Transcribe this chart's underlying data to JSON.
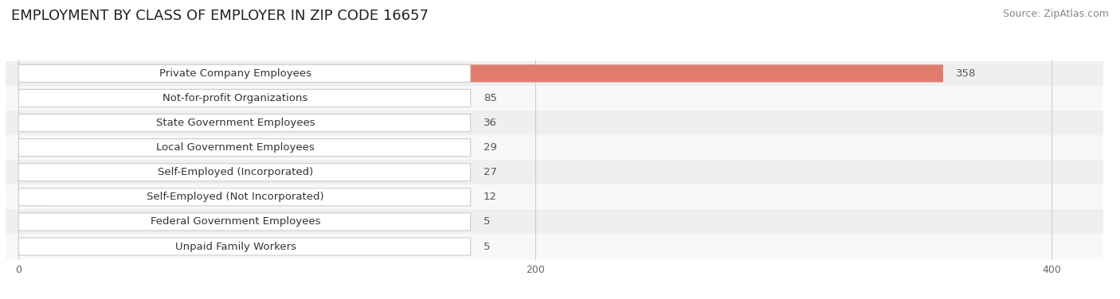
{
  "title": "EMPLOYMENT BY CLASS OF EMPLOYER IN ZIP CODE 16657",
  "source": "Source: ZipAtlas.com",
  "categories": [
    "Private Company Employees",
    "Not-for-profit Organizations",
    "State Government Employees",
    "Local Government Employees",
    "Self-Employed (Incorporated)",
    "Self-Employed (Not Incorporated)",
    "Federal Government Employees",
    "Unpaid Family Workers"
  ],
  "values": [
    358,
    85,
    36,
    29,
    27,
    12,
    5,
    5
  ],
  "bar_colors": [
    "#e07b6e",
    "#a8bcd8",
    "#c4a8d4",
    "#6dbfb8",
    "#b8b0dc",
    "#f0a0b0",
    "#f5c896",
    "#f0a8a8"
  ],
  "row_bg_colors": [
    "#efefef",
    "#f8f8f8"
  ],
  "xlim": [
    0,
    420
  ],
  "xticks": [
    0,
    200,
    400
  ],
  "title_fontsize": 13,
  "label_fontsize": 9.5,
  "value_fontsize": 9.5,
  "source_fontsize": 9
}
